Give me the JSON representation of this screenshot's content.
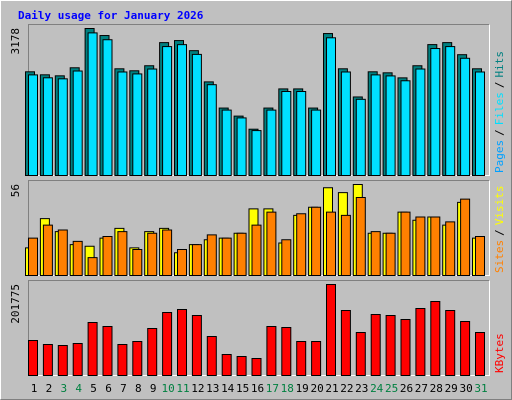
{
  "chart_data": [
    {
      "type": "bar",
      "title": "Daily usage for January 2026",
      "ylim": [
        0,
        3178
      ],
      "yticks": [
        3178
      ],
      "legend_separator": "/",
      "legend_extra": [
        {
          "name": "Pages",
          "color": "#00a0ff"
        }
      ],
      "series": [
        {
          "name": "Hits",
          "color": "#008080",
          "values": [
            2242,
            2177,
            2155,
            2329,
            3178,
            3026,
            2307,
            2264,
            2373,
            2873,
            2917,
            2699,
            2024,
            1458,
            1284,
            1001,
            1458,
            1872,
            1872,
            1458,
            3069,
            2307,
            1698,
            2242,
            2220,
            2111,
            2373,
            2830,
            2873,
            2612,
            2307
          ]
        },
        {
          "name": "Files",
          "color": "#00e0ff",
          "values": [
            2175,
            2112,
            2090,
            2259,
            3083,
            2935,
            2238,
            2196,
            2302,
            2787,
            2829,
            2618,
            1963,
            1414,
            1245,
            971,
            1414,
            1816,
            1816,
            1414,
            2977,
            2238,
            1647,
            2175,
            2153,
            2048,
            2302,
            2745,
            2787,
            2534,
            2238
          ]
        }
      ]
    },
    {
      "type": "bar",
      "ylim": [
        0,
        56
      ],
      "yticks": [
        56
      ],
      "legend_separator": "/",
      "series": [
        {
          "name": "Visits",
          "color": "#ffff00",
          "values": [
            17,
            35,
            27,
            19,
            18,
            23,
            29,
            17,
            27,
            29,
            14,
            19,
            22,
            23,
            26,
            41,
            41,
            20,
            37,
            42,
            54,
            51,
            56,
            26,
            26,
            39,
            34,
            36,
            31,
            45,
            23
          ]
        },
        {
          "name": "Sites",
          "color": "#ff8000",
          "values": [
            23,
            31,
            28,
            21,
            11,
            24,
            27,
            16,
            26,
            28,
            16,
            19,
            25,
            23,
            26,
            31,
            39,
            22,
            38,
            42,
            39,
            37,
            48,
            27,
            26,
            39,
            36,
            36,
            33,
            47,
            24
          ]
        }
      ]
    },
    {
      "type": "bar",
      "ylim": [
        0,
        201775
      ],
      "yticks": [
        201775
      ],
      "categories": [
        "1",
        "2",
        "3",
        "4",
        "5",
        "6",
        "7",
        "8",
        "9",
        "10",
        "11",
        "12",
        "13",
        "14",
        "15",
        "16",
        "17",
        "18",
        "19",
        "20",
        "21",
        "22",
        "23",
        "24",
        "25",
        "26",
        "27",
        "28",
        "29",
        "30",
        "31"
      ],
      "category_colors": [
        "#000000",
        "#000000",
        "#008040",
        "#008040",
        "#000000",
        "#000000",
        "#000000",
        "#000000",
        "#000000",
        "#008040",
        "#008040",
        "#000000",
        "#000000",
        "#000000",
        "#000000",
        "#000000",
        "#008040",
        "#008040",
        "#000000",
        "#000000",
        "#000000",
        "#000000",
        "#000000",
        "#008040",
        "#008040",
        "#000000",
        "#000000",
        "#000000",
        "#000000",
        "#000000",
        "#008040"
      ],
      "series": [
        {
          "name": "KBytes",
          "color": "#ff0000",
          "values": [
            77606,
            68736,
            66519,
            70954,
            117517,
            108648,
            68736,
            75388,
            104213,
            139690,
            146342,
            133038,
            86475,
            46563,
            42129,
            37694,
            108648,
            106430,
            75388,
            75388,
            201775,
            144125,
            95344,
            135255,
            133038,
            124169,
            148560,
            164081,
            144125,
            119734,
            95344
          ]
        }
      ]
    }
  ]
}
